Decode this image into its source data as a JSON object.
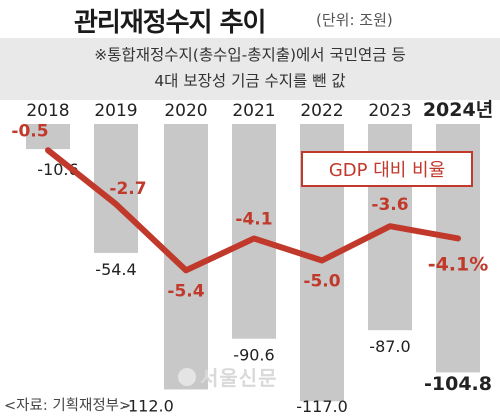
{
  "title": "관리재정수지 추이",
  "unit": "(단위: 조원)",
  "note_lines": [
    "※통합재정수지(총수입-총지출)에서 국민연금 등",
    "4대 보장성 기금 수지를 뺀 값"
  ],
  "legend_label": "GDP 대비 비율",
  "source": "<자료: 기획재정부>",
  "watermark": "서울신문",
  "colors": {
    "bar": "#c8c8c8",
    "line": "#c0392b",
    "ratio_text": "#c0392b",
    "bar_label": "#222222",
    "note_bg": "#e9e9e9"
  },
  "chart_data": {
    "type": "bar",
    "categories": [
      "2018",
      "2019",
      "2020",
      "2021",
      "2022",
      "2023",
      "2024년"
    ],
    "series": [
      {
        "values": [
          -10.6,
          -54.4,
          -112.0,
          -90.6,
          -117.0,
          -87.0,
          -104.8
        ],
        "labels": [
          "-10.6",
          "-54.4",
          "-112.0",
          "-90.6",
          "-117.0",
          "-87.0",
          "-104.8"
        ]
      },
      {
        "name": "GDP 대비 비율",
        "type": "line",
        "values": [
          -0.5,
          -2.7,
          -5.4,
          -4.1,
          -5.0,
          -3.6,
          -4.1
        ],
        "labels": [
          "-0.5",
          "-2.7",
          "-5.4",
          "-4.1",
          "-5.0",
          "-3.6",
          "-4.1%"
        ]
      }
    ],
    "title": "관리재정수지 추이",
    "xlabel": "",
    "ylabel": "",
    "ylim": [
      -117.0,
      0
    ],
    "grid": false,
    "legend": "top-right"
  }
}
